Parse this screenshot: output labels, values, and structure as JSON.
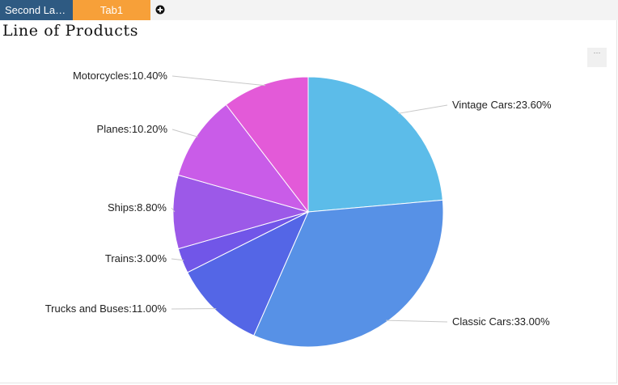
{
  "tabs": [
    {
      "label": "Second La…"
    },
    {
      "label": "Tab1"
    }
  ],
  "add_tab_icon": "plus-circle-icon",
  "more_icon": "ellipsis-icon",
  "more_label": "···",
  "chart_data": {
    "type": "pie",
    "title": "Line of Products",
    "slices": [
      {
        "name": "Vintage Cars",
        "value": 23.6,
        "label": "Vintage Cars:23.60%",
        "color": "#5cbce9"
      },
      {
        "name": "Classic Cars",
        "value": 33.0,
        "label": "Classic Cars:33.00%",
        "color": "#5791e6"
      },
      {
        "name": "Trucks and Buses",
        "value": 11.0,
        "label": "Trucks and Buses:11.00%",
        "color": "#5466e6"
      },
      {
        "name": "Trains",
        "value": 3.0,
        "label": "Trains:3.00%",
        "color": "#7156e8"
      },
      {
        "name": "Ships",
        "value": 8.8,
        "label": "Ships:8.80%",
        "color": "#9c59e8"
      },
      {
        "name": "Planes",
        "value": 10.2,
        "label": "Planes:10.20%",
        "color": "#c95ce8"
      },
      {
        "name": "Motorcycles",
        "value": 10.4,
        "label": "Motorcycles:10.40%",
        "color": "#e35ad8"
      }
    ],
    "start": "12 o'clock",
    "direction": "clockwise",
    "legend": "none (leader-line labels)"
  }
}
